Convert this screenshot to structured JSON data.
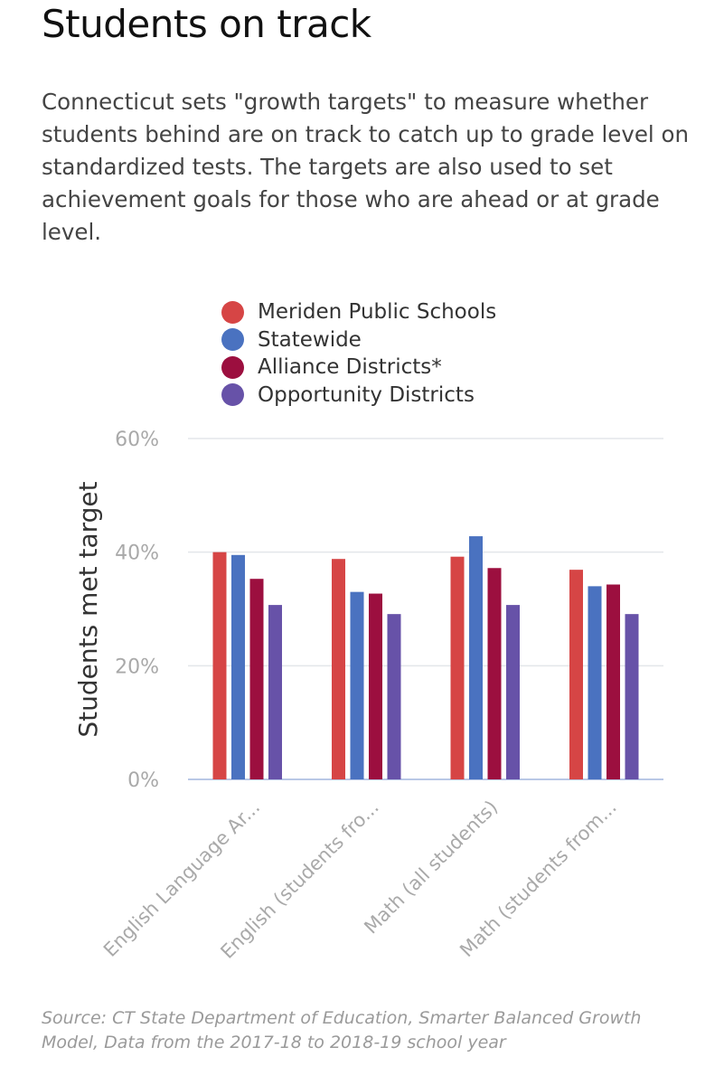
{
  "title": "Students on track",
  "description": "Connecticut sets \"growth targets\" to measure whether students behind are on track to catch up to grade level on standardized tests. The targets are also used to set achievement goals for those who are ahead or at grade level.",
  "source": "Source: CT State Department of Education, Smarter Balanced Growth Model, Data from the 2017-18 to 2018-19 school year",
  "colors": {
    "meriden": "#d64545",
    "statewide": "#4a72c0",
    "alliance": "#9c0f3f",
    "opportunity": "#6752a8",
    "grid": "#e3e6ea",
    "baseline": "#b9c8e6",
    "tick_text": "#a9a9a9"
  },
  "chart_data": {
    "type": "bar",
    "categories": [
      "English Language Ar...",
      "English (students fro...",
      "Math (all students)",
      "Math (students from..."
    ],
    "series": [
      {
        "name": "Meriden Public Schools",
        "color_key": "meriden",
        "values": [
          40.0,
          38.8,
          39.2,
          36.9
        ]
      },
      {
        "name": "Statewide",
        "color_key": "statewide",
        "values": [
          39.5,
          33.0,
          42.8,
          34.0
        ]
      },
      {
        "name": "Alliance Districts*",
        "color_key": "alliance",
        "values": [
          35.3,
          32.7,
          37.2,
          34.3
        ]
      },
      {
        "name": "Opportunity Districts",
        "color_key": "opportunity",
        "values": [
          30.7,
          29.1,
          30.7,
          29.1
        ]
      }
    ],
    "xlabel": "",
    "ylabel": "Students met target",
    "ylim": [
      0,
      60
    ],
    "yticks": [
      0,
      20,
      40,
      60
    ],
    "ytick_labels": [
      "0%",
      "20%",
      "40%",
      "60%"
    ],
    "grid": true,
    "legend_position": "top"
  }
}
